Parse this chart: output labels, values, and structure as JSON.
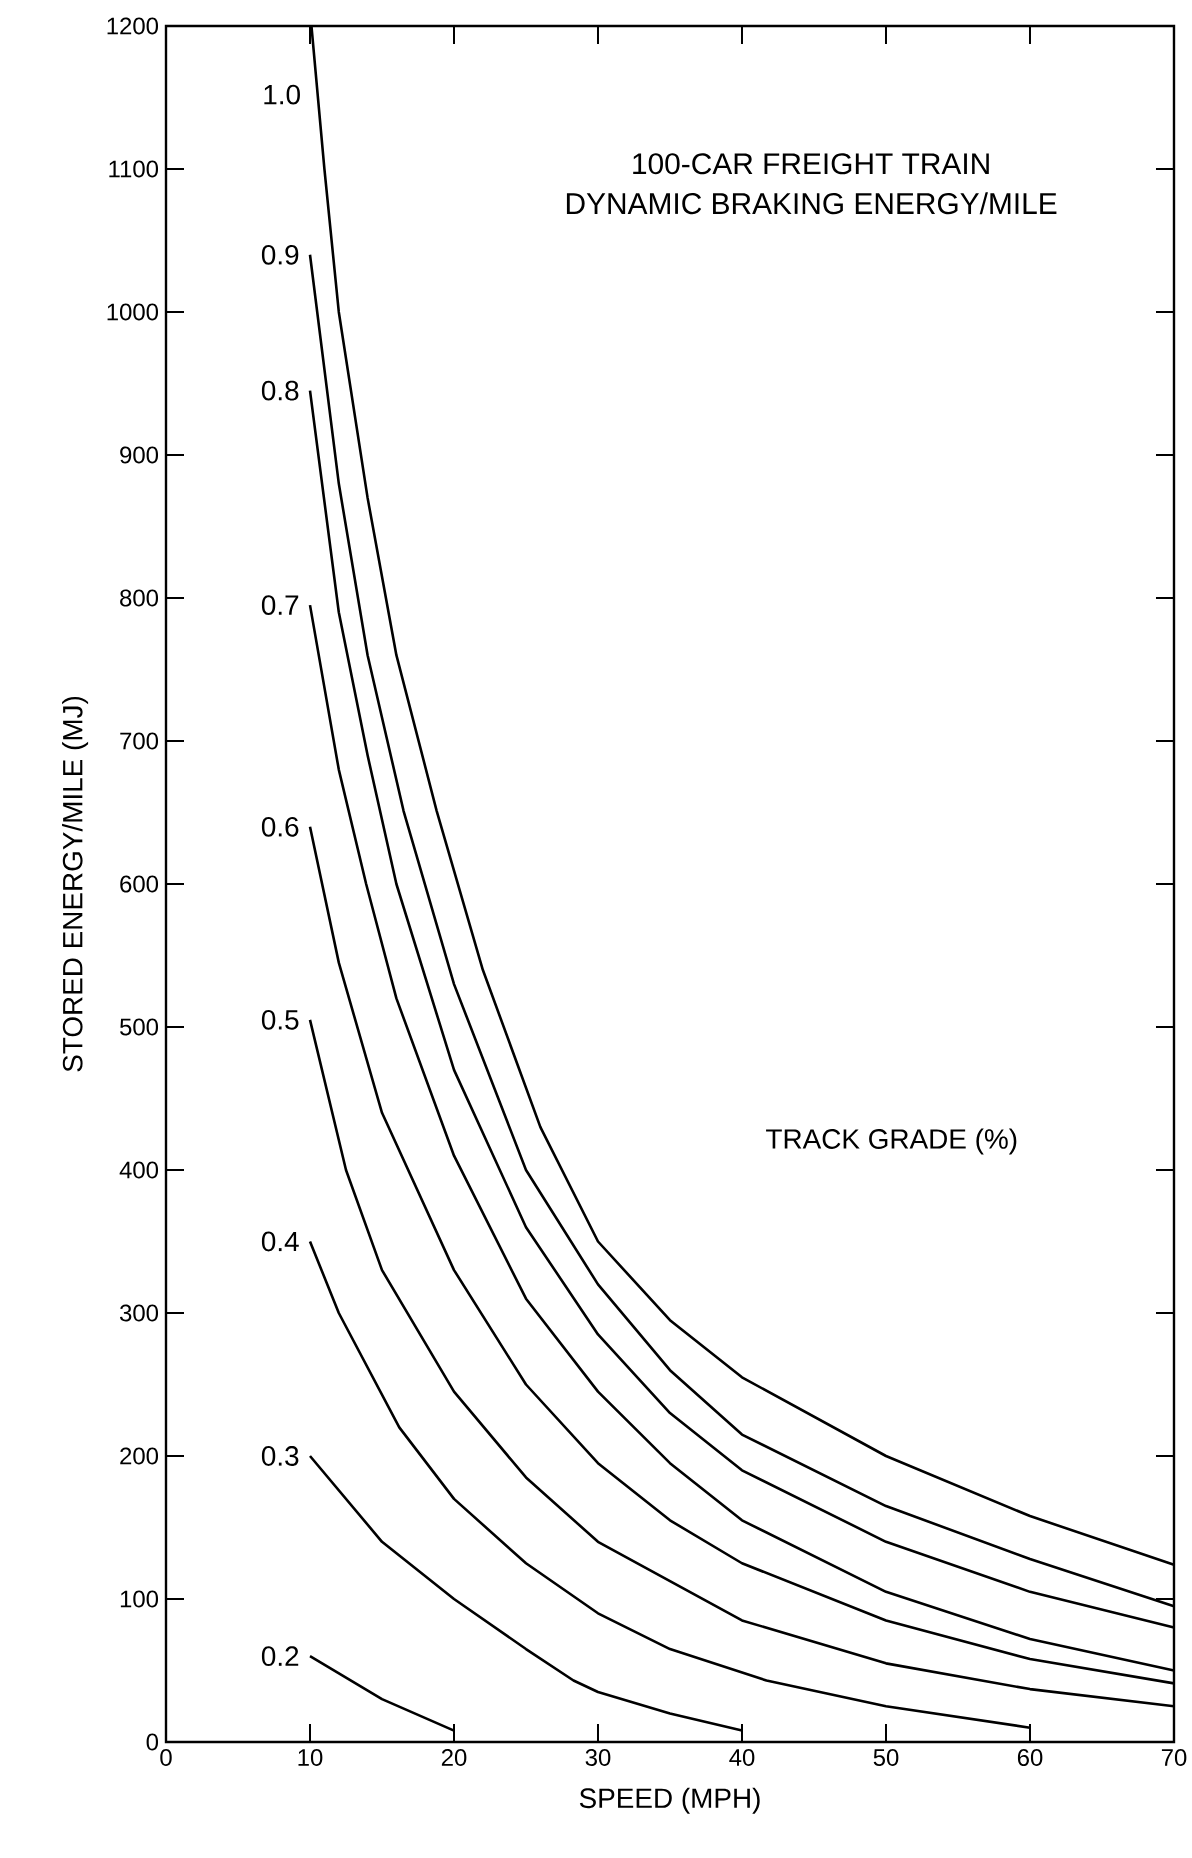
{
  "chart_data": {
    "type": "line",
    "title": "100-CAR FREIGHT TRAIN",
    "subtitle": "DYNAMIC BRAKING ENERGY/MILE",
    "xlabel": "SPEED (MPH)",
    "ylabel": "STORED ENERGY/MILE (MJ)",
    "legend_title": "TRACK GRADE (%)",
    "xlim": [
      0,
      70
    ],
    "xticks": [
      0,
      10,
      20,
      30,
      40,
      50,
      60,
      70
    ],
    "ylim": [
      0,
      1200
    ],
    "yticks": [
      0,
      100,
      200,
      300,
      400,
      500,
      600,
      700,
      800,
      900,
      1000,
      1100,
      1200
    ],
    "grid": false,
    "line_style": "solid",
    "series": [
      {
        "name": "0.2",
        "color": "#000000",
        "x": [
          10,
          15,
          20
        ],
        "values": [
          60,
          30,
          8
        ]
      },
      {
        "name": "0.3",
        "color": "#000000",
        "x": [
          10,
          15,
          20,
          25,
          28.3,
          30,
          35,
          40
        ],
        "values": [
          200,
          140,
          100,
          65,
          43,
          35,
          20,
          8
        ]
      },
      {
        "name": "0.4",
        "color": "#000000",
        "x": [
          10,
          12,
          16.2,
          20,
          25,
          30,
          35,
          41.7,
          50,
          60
        ],
        "values": [
          350,
          300,
          220,
          170,
          125,
          90,
          65,
          43,
          25,
          10
        ]
      },
      {
        "name": "0.5",
        "color": "#000000",
        "x": [
          10,
          12.5,
          15,
          20,
          25,
          30,
          40,
          50,
          60,
          70
        ],
        "values": [
          505,
          400,
          330,
          245,
          185,
          140,
          85,
          55,
          37,
          25
        ]
      },
      {
        "name": "0.6",
        "color": "#000000",
        "x": [
          10,
          12,
          15,
          20,
          25,
          30,
          35,
          40,
          50,
          60,
          70
        ],
        "values": [
          640,
          545,
          440,
          330,
          250,
          195,
          155,
          125,
          85,
          58,
          41
        ]
      },
      {
        "name": "0.7",
        "color": "#000000",
        "x": [
          10,
          12,
          13.9,
          16,
          20,
          25,
          30,
          35,
          40,
          50,
          60,
          70
        ],
        "values": [
          795,
          680,
          600,
          520,
          410,
          310,
          245,
          195,
          155,
          105,
          72,
          50
        ]
      },
      {
        "name": "0.8",
        "color": "#000000",
        "x": [
          10,
          12,
          14,
          16,
          20,
          25,
          30,
          35,
          40,
          50,
          60,
          70
        ],
        "values": [
          945,
          790,
          690,
          600,
          470,
          360,
          285,
          230,
          190,
          140,
          105,
          80
        ]
      },
      {
        "name": "0.9",
        "color": "#000000",
        "x": [
          10,
          12,
          14,
          16.5,
          20,
          25,
          30,
          35,
          40,
          50,
          60,
          70
        ],
        "values": [
          1040,
          880,
          760,
          651,
          530,
          400,
          320,
          260,
          215,
          165,
          128,
          95
        ]
      },
      {
        "name": "1.0",
        "color": "#000000",
        "x": [
          10.1,
          11,
          12,
          14,
          16,
          18.8,
          22,
          26,
          30,
          35,
          40,
          50,
          60,
          70
        ],
        "values": [
          1200,
          1100,
          1000,
          870,
          760,
          651,
          540,
          430,
          350,
          295,
          255,
          200,
          158,
          124
        ]
      }
    ]
  }
}
